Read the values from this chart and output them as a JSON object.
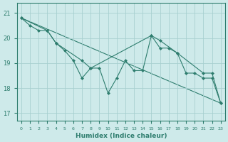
{
  "title": "",
  "xlabel": "Humidex (Indice chaleur)",
  "bg_color": "#ceeaea",
  "grid_color": "#a8d0d0",
  "line_color": "#2e7d6e",
  "spine_color": "#2e7d6e",
  "xlim": [
    -0.5,
    23.5
  ],
  "ylim": [
    16.7,
    21.4
  ],
  "yticks": [
    17,
    18,
    19,
    20,
    21
  ],
  "xticks": [
    0,
    1,
    2,
    3,
    4,
    5,
    6,
    7,
    8,
    9,
    10,
    11,
    12,
    13,
    14,
    15,
    16,
    17,
    18,
    19,
    20,
    21,
    22,
    23
  ],
  "series1": [
    [
      0,
      20.8
    ],
    [
      1,
      20.5
    ],
    [
      2,
      20.3
    ],
    [
      3,
      20.3
    ],
    [
      4,
      19.8
    ],
    [
      5,
      19.5
    ],
    [
      6,
      19.1
    ],
    [
      7,
      18.4
    ],
    [
      8,
      18.8
    ],
    [
      9,
      18.8
    ],
    [
      10,
      17.8
    ],
    [
      11,
      18.4
    ],
    [
      12,
      19.1
    ],
    [
      13,
      18.7
    ],
    [
      14,
      18.7
    ],
    [
      15,
      20.1
    ],
    [
      16,
      19.6
    ],
    [
      17,
      19.6
    ],
    [
      18,
      19.4
    ],
    [
      19,
      18.6
    ],
    [
      20,
      18.6
    ],
    [
      21,
      18.4
    ],
    [
      22,
      18.4
    ],
    [
      23,
      17.4
    ]
  ],
  "series2": [
    [
      0,
      20.8
    ],
    [
      3,
      20.3
    ],
    [
      4,
      19.8
    ],
    [
      7,
      19.1
    ],
    [
      8,
      18.8
    ],
    [
      15,
      20.1
    ],
    [
      16,
      19.9
    ],
    [
      18,
      19.4
    ],
    [
      21,
      18.6
    ],
    [
      22,
      18.6
    ],
    [
      23,
      17.4
    ]
  ],
  "series3": [
    [
      0,
      20.8
    ],
    [
      23,
      17.4
    ]
  ]
}
